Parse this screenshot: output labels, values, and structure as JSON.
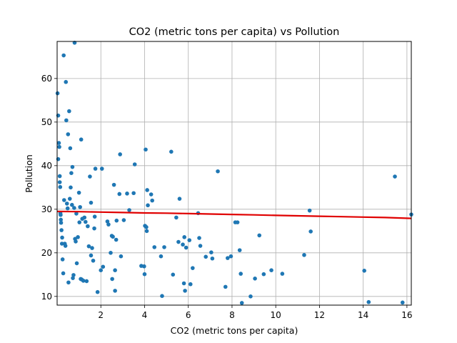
{
  "chart_data": {
    "type": "scatter",
    "title": "CO2 (metric tons per capita) vs Pollution",
    "xlabel": "CO2 (metric tons per capita)",
    "ylabel": "Pollution",
    "xlim": [
      0.0,
      16.2
    ],
    "ylim": [
      8.0,
      68.5
    ],
    "xticks": [
      2,
      4,
      6,
      8,
      10,
      12,
      14,
      16
    ],
    "yticks": [
      10,
      20,
      30,
      40,
      50,
      60
    ],
    "grid": true,
    "colors": {
      "points": "#1f77b4",
      "trend": "#e00000",
      "grid": "#b0b0b0"
    },
    "points": [
      [
        0.02,
        56.6
      ],
      [
        0.05,
        51.5
      ],
      [
        0.05,
        41.5
      ],
      [
        0.08,
        45.2
      ],
      [
        0.1,
        44.3
      ],
      [
        0.12,
        37.6
      ],
      [
        0.12,
        36.2
      ],
      [
        0.14,
        35.1
      ],
      [
        0.15,
        29.1
      ],
      [
        0.16,
        28.7
      ],
      [
        0.17,
        27.6
      ],
      [
        0.18,
        26.9
      ],
      [
        0.2,
        25.2
      ],
      [
        0.22,
        22.1
      ],
      [
        0.23,
        23.5
      ],
      [
        0.25,
        18.5
      ],
      [
        0.28,
        15.3
      ],
      [
        0.3,
        65.3
      ],
      [
        0.32,
        32.1
      ],
      [
        0.35,
        22.1
      ],
      [
        0.38,
        21.6
      ],
      [
        0.4,
        59.2
      ],
      [
        0.42,
        50.4
      ],
      [
        0.45,
        31.3
      ],
      [
        0.48,
        30.2
      ],
      [
        0.5,
        47.2
      ],
      [
        0.52,
        13.2
      ],
      [
        0.55,
        52.5
      ],
      [
        0.58,
        32.4
      ],
      [
        0.6,
        44.0
      ],
      [
        0.62,
        35.0
      ],
      [
        0.65,
        38.3
      ],
      [
        0.68,
        31.0
      ],
      [
        0.7,
        39.7
      ],
      [
        0.72,
        14.2
      ],
      [
        0.75,
        14.9
      ],
      [
        0.78,
        30.3
      ],
      [
        0.8,
        68.2
      ],
      [
        0.82,
        23.2
      ],
      [
        0.85,
        22.6
      ],
      [
        0.88,
        29.0
      ],
      [
        0.9,
        17.6
      ],
      [
        0.95,
        23.6
      ],
      [
        1.0,
        33.8
      ],
      [
        1.02,
        27.0
      ],
      [
        1.05,
        30.5
      ],
      [
        1.08,
        14.0
      ],
      [
        1.1,
        46.0
      ],
      [
        1.12,
        13.9
      ],
      [
        1.15,
        27.8
      ],
      [
        1.2,
        13.6
      ],
      [
        1.25,
        28.1
      ],
      [
        1.3,
        27.1
      ],
      [
        1.35,
        13.5
      ],
      [
        1.4,
        26.1
      ],
      [
        1.45,
        21.5
      ],
      [
        1.5,
        37.5
      ],
      [
        1.55,
        31.5
      ],
      [
        1.55,
        19.4
      ],
      [
        1.6,
        21.1
      ],
      [
        1.65,
        18.2
      ],
      [
        1.7,
        25.6
      ],
      [
        1.72,
        28.3
      ],
      [
        1.75,
        39.3
      ],
      [
        1.85,
        11.0
      ],
      [
        2.0,
        16.0
      ],
      [
        2.05,
        39.3
      ],
      [
        2.1,
        16.8
      ],
      [
        2.3,
        27.2
      ],
      [
        2.35,
        26.5
      ],
      [
        2.45,
        20.0
      ],
      [
        2.5,
        23.9
      ],
      [
        2.52,
        14.0
      ],
      [
        2.55,
        23.7
      ],
      [
        2.6,
        35.6
      ],
      [
        2.65,
        16.0
      ],
      [
        2.65,
        11.3
      ],
      [
        2.7,
        23.0
      ],
      [
        2.72,
        27.4
      ],
      [
        2.85,
        33.5
      ],
      [
        2.88,
        42.6
      ],
      [
        2.92,
        19.2
      ],
      [
        3.05,
        27.5
      ],
      [
        3.2,
        33.6
      ],
      [
        3.3,
        29.8
      ],
      [
        3.5,
        33.7
      ],
      [
        3.55,
        40.3
      ],
      [
        3.85,
        17.0
      ],
      [
        3.98,
        16.9
      ],
      [
        4.0,
        15.1
      ],
      [
        4.02,
        26.2
      ],
      [
        4.05,
        43.7
      ],
      [
        4.08,
        25.9
      ],
      [
        4.1,
        25.0
      ],
      [
        4.12,
        34.4
      ],
      [
        4.15,
        30.9
      ],
      [
        4.3,
        33.4
      ],
      [
        4.35,
        32.0
      ],
      [
        4.45,
        21.3
      ],
      [
        4.75,
        19.2
      ],
      [
        4.8,
        10.1
      ],
      [
        4.9,
        21.3
      ],
      [
        5.22,
        43.2
      ],
      [
        5.3,
        15.0
      ],
      [
        5.45,
        28.1
      ],
      [
        5.55,
        22.5
      ],
      [
        5.6,
        32.4
      ],
      [
        5.75,
        21.9
      ],
      [
        5.8,
        13.0
      ],
      [
        5.82,
        23.6
      ],
      [
        5.85,
        11.3
      ],
      [
        5.9,
        21.2
      ],
      [
        6.05,
        22.9
      ],
      [
        6.1,
        12.8
      ],
      [
        6.2,
        16.5
      ],
      [
        6.45,
        29.1
      ],
      [
        6.5,
        23.4
      ],
      [
        6.55,
        21.6
      ],
      [
        6.8,
        19.1
      ],
      [
        7.05,
        20.1
      ],
      [
        7.1,
        18.7
      ],
      [
        7.35,
        38.7
      ],
      [
        7.7,
        12.2
      ],
      [
        7.8,
        18.8
      ],
      [
        7.95,
        19.2
      ],
      [
        8.15,
        27.0
      ],
      [
        8.25,
        27.0
      ],
      [
        8.35,
        20.6
      ],
      [
        8.4,
        15.2
      ],
      [
        8.45,
        8.5
      ],
      [
        8.85,
        10.0
      ],
      [
        9.05,
        14.1
      ],
      [
        9.25,
        24.0
      ],
      [
        9.45,
        15.1
      ],
      [
        9.8,
        16.0
      ],
      [
        10.3,
        15.2
      ],
      [
        11.3,
        19.5
      ],
      [
        11.55,
        29.7
      ],
      [
        11.6,
        24.9
      ],
      [
        14.05,
        15.9
      ],
      [
        14.25,
        8.7
      ],
      [
        15.45,
        37.5
      ],
      [
        15.8,
        8.6
      ],
      [
        16.2,
        28.8
      ]
    ],
    "trend": {
      "x": [
        0.0,
        1.0,
        2.0,
        3.0,
        4.0,
        5.0,
        6.0,
        7.0,
        8.0,
        9.0,
        10.0,
        11.0,
        12.0,
        13.0,
        14.0,
        15.0,
        16.2
      ],
      "y": [
        29.5,
        29.45,
        29.35,
        29.25,
        29.15,
        29.1,
        29.0,
        28.9,
        28.8,
        28.7,
        28.6,
        28.5,
        28.4,
        28.3,
        28.2,
        28.1,
        27.9
      ]
    }
  }
}
